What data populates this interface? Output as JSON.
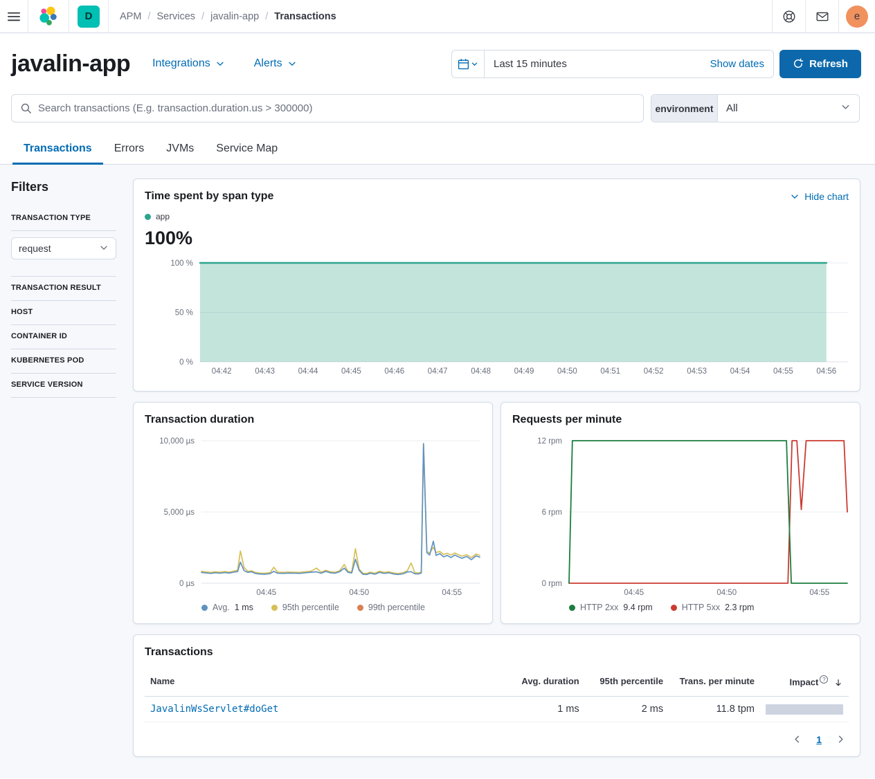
{
  "topbar": {
    "breadcrumbs": [
      "APM",
      "Services",
      "javalin-app",
      "Transactions"
    ],
    "space_initial": "D",
    "avatar_initial": "e"
  },
  "header": {
    "title": "javalin-app",
    "integrations_label": "Integrations",
    "alerts_label": "Alerts",
    "time_range": "Last 15 minutes",
    "show_dates_label": "Show dates",
    "refresh_label": "Refresh"
  },
  "search": {
    "placeholder": "Search transactions (E.g. transaction.duration.us > 300000)",
    "environment_label": "environment",
    "environment_value": "All"
  },
  "tabs": [
    {
      "label": "Transactions"
    },
    {
      "label": "Errors"
    },
    {
      "label": "JVMs"
    },
    {
      "label": "Service Map"
    }
  ],
  "filters": {
    "title": "Filters",
    "transaction_type_label": "TRANSACTION TYPE",
    "transaction_type_value": "request",
    "sections": [
      "TRANSACTION RESULT",
      "HOST",
      "CONTAINER ID",
      "KUBERNETES POD",
      "SERVICE VERSION"
    ]
  },
  "timespent_panel": {
    "title": "Time spent by span type",
    "hide_chart_label": "Hide chart",
    "series_label": "app",
    "headline_value": "100%"
  },
  "duration_panel": {
    "title": "Transaction duration"
  },
  "rpm_panel": {
    "title": "Requests per minute"
  },
  "chart_data": [
    {
      "type": "area",
      "title": "Time spent by span type",
      "x_unit": "minutes from 04:41.5",
      "xlim": [
        0,
        15
      ],
      "ylim": [
        0,
        100
      ],
      "grid": true,
      "yticks": [
        {
          "v": 100,
          "label": "100 %"
        },
        {
          "v": 50,
          "label": "50 %"
        },
        {
          "v": 0,
          "label": "0 %"
        }
      ],
      "xticks": [
        {
          "v": 0.5,
          "label": "04:42"
        },
        {
          "v": 1.5,
          "label": "04:43"
        },
        {
          "v": 2.5,
          "label": "04:44"
        },
        {
          "v": 3.5,
          "label": "04:45"
        },
        {
          "v": 4.5,
          "label": "04:46"
        },
        {
          "v": 5.5,
          "label": "04:47"
        },
        {
          "v": 6.5,
          "label": "04:48"
        },
        {
          "v": 7.5,
          "label": "04:49"
        },
        {
          "v": 8.5,
          "label": "04:50"
        },
        {
          "v": 9.5,
          "label": "04:51"
        },
        {
          "v": 10.5,
          "label": "04:52"
        },
        {
          "v": 11.5,
          "label": "04:53"
        },
        {
          "v": 12.5,
          "label": "04:54"
        },
        {
          "v": 13.5,
          "label": "04:55"
        },
        {
          "v": 14.5,
          "label": "04:56"
        }
      ],
      "layout": {
        "margins": {
          "l": 80,
          "r": 0,
          "t": 8,
          "b": 26
        },
        "legend_position": "top"
      },
      "series": [
        {
          "name": "app",
          "color": "#2CA58D",
          "fill": "rgba(84,179,153,0.35)",
          "area": true,
          "width": 2.5,
          "points": [
            [
              0,
              100
            ],
            [
              14.5,
              100
            ]
          ]
        }
      ]
    },
    {
      "type": "line",
      "title": "Transaction duration",
      "x_unit": "minutes from 04:41.5",
      "xlim": [
        0,
        15
      ],
      "ylim": [
        0,
        10000
      ],
      "grid": true,
      "yticks": [
        {
          "v": 10000,
          "label": "10,000 µs"
        },
        {
          "v": 5000,
          "label": "5,000 µs"
        },
        {
          "v": 0,
          "label": "0 µs"
        }
      ],
      "xticks": [
        {
          "v": 3.5,
          "label": "04:45"
        },
        {
          "v": 8.5,
          "label": "04:50"
        },
        {
          "v": 13.5,
          "label": "04:55"
        }
      ],
      "layout": {
        "margins": {
          "l": 82,
          "r": 2,
          "t": 9,
          "b": 23
        },
        "legend_position": "bottom"
      },
      "series": [
        {
          "name": "95th percentile",
          "color": "#D6BF57",
          "width": 1.7,
          "points": [
            [
              0,
              830
            ],
            [
              0.25,
              790
            ],
            [
              0.5,
              760
            ],
            [
              0.75,
              800
            ],
            [
              1,
              770
            ],
            [
              1.25,
              820
            ],
            [
              1.5,
              780
            ],
            [
              1.75,
              850
            ],
            [
              1.95,
              920
            ],
            [
              2.1,
              2260
            ],
            [
              2.3,
              1100
            ],
            [
              2.5,
              830
            ],
            [
              2.7,
              870
            ],
            [
              2.9,
              760
            ],
            [
              3.1,
              720
            ],
            [
              3.4,
              700
            ],
            [
              3.7,
              740
            ],
            [
              3.9,
              1120
            ],
            [
              4.1,
              780
            ],
            [
              4.4,
              760
            ],
            [
              4.7,
              780
            ],
            [
              5,
              770
            ],
            [
              5.3,
              760
            ],
            [
              5.6,
              800
            ],
            [
              5.9,
              840
            ],
            [
              6.2,
              1060
            ],
            [
              6.45,
              770
            ],
            [
              6.7,
              910
            ],
            [
              6.95,
              800
            ],
            [
              7.2,
              770
            ],
            [
              7.45,
              880
            ],
            [
              7.7,
              1310
            ],
            [
              7.9,
              830
            ],
            [
              8.1,
              790
            ],
            [
              8.3,
              2420
            ],
            [
              8.5,
              1000
            ],
            [
              8.7,
              700
            ],
            [
              8.9,
              680
            ],
            [
              9.1,
              780
            ],
            [
              9.35,
              700
            ],
            [
              9.6,
              840
            ],
            [
              9.85,
              760
            ],
            [
              10.1,
              800
            ],
            [
              10.35,
              720
            ],
            [
              10.6,
              680
            ],
            [
              10.85,
              730
            ],
            [
              11.1,
              880
            ],
            [
              11.3,
              1420
            ],
            [
              11.5,
              740
            ],
            [
              11.7,
              720
            ],
            [
              11.85,
              790
            ],
            [
              11.97,
              9700
            ],
            [
              12.15,
              2230
            ],
            [
              12.3,
              2120
            ],
            [
              12.5,
              2520
            ],
            [
              12.65,
              2150
            ],
            [
              12.85,
              2230
            ],
            [
              13.05,
              2020
            ],
            [
              13.25,
              2100
            ],
            [
              13.45,
              1980
            ],
            [
              13.65,
              2120
            ],
            [
              13.85,
              2000
            ],
            [
              14.05,
              1900
            ],
            [
              14.3,
              2000
            ],
            [
              14.55,
              1800
            ],
            [
              14.8,
              2050
            ],
            [
              15,
              1960
            ]
          ]
        },
        {
          "name": "Avg.",
          "color": "#6092C0",
          "width": 1.7,
          "points": [
            [
              0,
              760
            ],
            [
              0.25,
              720
            ],
            [
              0.5,
              690
            ],
            [
              0.75,
              730
            ],
            [
              1,
              700
            ],
            [
              1.25,
              750
            ],
            [
              1.5,
              710
            ],
            [
              1.75,
              780
            ],
            [
              1.95,
              820
            ],
            [
              2.1,
              1480
            ],
            [
              2.3,
              880
            ],
            [
              2.5,
              760
            ],
            [
              2.7,
              800
            ],
            [
              2.9,
              690
            ],
            [
              3.1,
              650
            ],
            [
              3.4,
              630
            ],
            [
              3.7,
              670
            ],
            [
              3.9,
              830
            ],
            [
              4.1,
              700
            ],
            [
              4.4,
              690
            ],
            [
              4.7,
              710
            ],
            [
              5,
              700
            ],
            [
              5.3,
              690
            ],
            [
              5.6,
              730
            ],
            [
              5.9,
              770
            ],
            [
              6.2,
              800
            ],
            [
              6.45,
              700
            ],
            [
              6.7,
              830
            ],
            [
              6.95,
              730
            ],
            [
              7.2,
              700
            ],
            [
              7.45,
              810
            ],
            [
              7.7,
              1060
            ],
            [
              7.9,
              760
            ],
            [
              8.1,
              720
            ],
            [
              8.3,
              1680
            ],
            [
              8.5,
              900
            ],
            [
              8.7,
              630
            ],
            [
              8.9,
              610
            ],
            [
              9.1,
              700
            ],
            [
              9.35,
              630
            ],
            [
              9.6,
              760
            ],
            [
              9.85,
              690
            ],
            [
              10.1,
              730
            ],
            [
              10.35,
              650
            ],
            [
              10.6,
              610
            ],
            [
              10.85,
              660
            ],
            [
              11.1,
              790
            ],
            [
              11.3,
              810
            ],
            [
              11.5,
              660
            ],
            [
              11.7,
              650
            ],
            [
              11.85,
              710
            ],
            [
              11.97,
              9800
            ],
            [
              12.15,
              2150
            ],
            [
              12.3,
              1980
            ],
            [
              12.5,
              2950
            ],
            [
              12.65,
              1950
            ],
            [
              12.85,
              2080
            ],
            [
              13.05,
              1850
            ],
            [
              13.25,
              1950
            ],
            [
              13.45,
              1800
            ],
            [
              13.65,
              1980
            ],
            [
              13.85,
              1850
            ],
            [
              14.05,
              1750
            ],
            [
              14.3,
              1880
            ],
            [
              14.55,
              1650
            ],
            [
              14.8,
              1920
            ],
            [
              15,
              1830
            ]
          ]
        }
      ],
      "legend": [
        {
          "color": "#6092C0",
          "label": "Avg.",
          "value": "1 ms"
        },
        {
          "color": "#D6BF57",
          "label": "95th percentile",
          "value": ""
        },
        {
          "color": "#D9804F",
          "label": "99th percentile",
          "value": ""
        }
      ]
    },
    {
      "type": "line",
      "title": "Requests per minute",
      "x_unit": "minutes from 04:41.5",
      "xlim": [
        0,
        15
      ],
      "ylim": [
        0,
        12
      ],
      "grid": true,
      "yticks": [
        {
          "v": 12,
          "label": "12 rpm"
        },
        {
          "v": 6,
          "label": "6 rpm"
        },
        {
          "v": 0,
          "label": "0 rpm"
        }
      ],
      "xticks": [
        {
          "v": 3.5,
          "label": "04:45"
        },
        {
          "v": 8.5,
          "label": "04:50"
        },
        {
          "v": 13.5,
          "label": "04:55"
        }
      ],
      "layout": {
        "margins": {
          "l": 82,
          "r": 2,
          "t": 9,
          "b": 23
        },
        "legend_position": "bottom"
      },
      "series": [
        {
          "name": "HTTP 5xx",
          "color": "#CB3B32",
          "width": 1.8,
          "points": [
            [
              0,
              0
            ],
            [
              11.8,
              0
            ],
            [
              12.02,
              12
            ],
            [
              12.28,
              12
            ],
            [
              12.52,
              6.2
            ],
            [
              12.78,
              12
            ],
            [
              14.82,
              12
            ],
            [
              15,
              6
            ]
          ]
        },
        {
          "name": "HTTP 2xx",
          "color": "#1B7D3E",
          "width": 1.8,
          "points": [
            [
              0,
              0
            ],
            [
              0.18,
              12
            ],
            [
              11.72,
              12
            ],
            [
              11.98,
              0
            ],
            [
              15,
              0
            ]
          ]
        }
      ],
      "legend": [
        {
          "color": "#1B7D3E",
          "label": "HTTP 2xx",
          "value": "9.4 rpm"
        },
        {
          "color": "#CB3B32",
          "label": "HTTP 5xx",
          "value": "2.3 rpm"
        }
      ]
    }
  ],
  "transactions_panel": {
    "title": "Transactions",
    "columns": {
      "name": "Name",
      "avg": "Avg. duration",
      "p95": "95th percentile",
      "tpm": "Trans. per minute",
      "impact": "Impact"
    },
    "rows": [
      {
        "name": "JavalinWsServlet#doGet",
        "avg": "1 ms",
        "p95": "2 ms",
        "tpm": "11.8 tpm",
        "impact_pct": 100
      }
    ]
  },
  "pagination": {
    "current": "1"
  }
}
